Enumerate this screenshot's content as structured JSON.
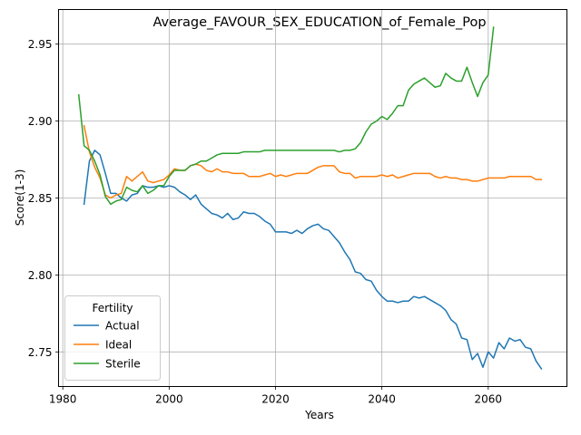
{
  "chart_data": {
    "type": "line",
    "title": "Average_FAVOUR_SEX_EDUCATION_of_Female_Pop",
    "xlabel": "Years",
    "ylabel": "Score(1-3)",
    "xlim": [
      1979.2,
      2074.8
    ],
    "ylim": [
      2.7275,
      2.9725
    ],
    "xticks": [
      1980,
      2000,
      2020,
      2040,
      2060
    ],
    "yticks": [
      2.75,
      2.8,
      2.85,
      2.9,
      2.95
    ],
    "ytick_labels": [
      "2.75",
      "2.80",
      "2.85",
      "2.90",
      "2.95"
    ],
    "grid": true,
    "legend": {
      "title": "Fertility",
      "placement": "lower-left"
    },
    "series": [
      {
        "name": "Actual",
        "color": "#1f77b4",
        "x": [
          1984,
          1985,
          1986,
          1987,
          1988,
          1989,
          1990,
          1991,
          1992,
          1993,
          1994,
          1995,
          1996,
          1997,
          1998,
          1999,
          2000,
          2001,
          2002,
          2003,
          2004,
          2005,
          2006,
          2007,
          2008,
          2009,
          2010,
          2011,
          2012,
          2013,
          2014,
          2015,
          2016,
          2017,
          2018,
          2019,
          2020,
          2021,
          2022,
          2023,
          2024,
          2025,
          2026,
          2027,
          2028,
          2029,
          2030,
          2031,
          2032,
          2033,
          2034,
          2035,
          2036,
          2037,
          2038,
          2039,
          2040,
          2041,
          2042,
          2043,
          2044,
          2045,
          2046,
          2047,
          2048,
          2049,
          2050,
          2051,
          2052,
          2053,
          2054,
          2055,
          2056,
          2057,
          2058,
          2059,
          2060,
          2061,
          2062,
          2063,
          2064,
          2065,
          2066,
          2067,
          2068,
          2069,
          2070
        ],
        "values": [
          2.846,
          2.874,
          2.881,
          2.878,
          2.866,
          2.853,
          2.853,
          2.85,
          2.848,
          2.852,
          2.853,
          2.858,
          2.857,
          2.857,
          2.858,
          2.857,
          2.858,
          2.857,
          2.854,
          2.852,
          2.849,
          2.852,
          2.846,
          2.843,
          2.84,
          2.839,
          2.837,
          2.84,
          2.836,
          2.837,
          2.841,
          2.84,
          2.84,
          2.838,
          2.835,
          2.833,
          2.828,
          2.828,
          2.828,
          2.827,
          2.829,
          2.827,
          2.83,
          2.832,
          2.833,
          2.83,
          2.829,
          2.825,
          2.821,
          2.815,
          2.81,
          2.802,
          2.801,
          2.797,
          2.796,
          2.79,
          2.786,
          2.783,
          2.783,
          2.782,
          2.783,
          2.783,
          2.786,
          2.785,
          2.786,
          2.784,
          2.782,
          2.78,
          2.777,
          2.771,
          2.768,
          2.759,
          2.758,
          2.745,
          2.749,
          2.74,
          2.75,
          2.746,
          2.756,
          2.752,
          2.759,
          2.757,
          2.758,
          2.753,
          2.752,
          2.744,
          2.739
        ]
      },
      {
        "name": "Ideal",
        "color": "#ff7f0e",
        "x": [
          1984,
          1985,
          1986,
          1987,
          1988,
          1989,
          1990,
          1991,
          1992,
          1993,
          1994,
          1995,
          1996,
          1997,
          1998,
          1999,
          2000,
          2001,
          2002,
          2003,
          2004,
          2005,
          2006,
          2007,
          2008,
          2009,
          2010,
          2011,
          2012,
          2013,
          2014,
          2015,
          2016,
          2017,
          2018,
          2019,
          2020,
          2021,
          2022,
          2023,
          2024,
          2025,
          2026,
          2027,
          2028,
          2029,
          2030,
          2031,
          2032,
          2033,
          2034,
          2035,
          2036,
          2037,
          2038,
          2039,
          2040,
          2041,
          2042,
          2043,
          2044,
          2045,
          2046,
          2047,
          2048,
          2049,
          2050,
          2051,
          2052,
          2053,
          2054,
          2055,
          2056,
          2057,
          2058,
          2059,
          2060,
          2061,
          2062,
          2063,
          2064,
          2065,
          2066,
          2067,
          2068,
          2069,
          2070
        ],
        "values": [
          2.897,
          2.88,
          2.87,
          2.863,
          2.852,
          2.85,
          2.852,
          2.853,
          2.864,
          2.861,
          2.864,
          2.867,
          2.861,
          2.86,
          2.861,
          2.862,
          2.865,
          2.869,
          2.868,
          2.868,
          2.871,
          2.872,
          2.871,
          2.868,
          2.867,
          2.869,
          2.867,
          2.867,
          2.866,
          2.866,
          2.866,
          2.864,
          2.864,
          2.864,
          2.865,
          2.866,
          2.864,
          2.865,
          2.864,
          2.865,
          2.866,
          2.866,
          2.866,
          2.868,
          2.87,
          2.871,
          2.871,
          2.871,
          2.867,
          2.866,
          2.866,
          2.863,
          2.864,
          2.864,
          2.864,
          2.864,
          2.865,
          2.864,
          2.865,
          2.863,
          2.864,
          2.865,
          2.866,
          2.866,
          2.866,
          2.866,
          2.864,
          2.863,
          2.864,
          2.863,
          2.863,
          2.862,
          2.862,
          2.861,
          2.861,
          2.862,
          2.863,
          2.863,
          2.863,
          2.863,
          2.864,
          2.864,
          2.864,
          2.864,
          2.864,
          2.862,
          2.862
        ]
      },
      {
        "name": "Sterile",
        "color": "#2ca02c",
        "x": [
          1983,
          1984,
          1985,
          1986,
          1987,
          1988,
          1989,
          1990,
          1991,
          1992,
          1993,
          1994,
          1995,
          1996,
          1997,
          1998,
          1999,
          2000,
          2001,
          2002,
          2003,
          2004,
          2005,
          2006,
          2007,
          2008,
          2009,
          2010,
          2011,
          2012,
          2013,
          2014,
          2015,
          2016,
          2017,
          2018,
          2019,
          2020,
          2021,
          2022,
          2023,
          2024,
          2025,
          2026,
          2027,
          2028,
          2029,
          2030,
          2031,
          2032,
          2033,
          2034,
          2035,
          2036,
          2037,
          2038,
          2039,
          2040,
          2041,
          2042,
          2043,
          2044,
          2045,
          2046,
          2047,
          2048,
          2049,
          2050,
          2051,
          2052,
          2053,
          2054,
          2055,
          2056,
          2057,
          2058,
          2059,
          2060,
          2061
        ],
        "values": [
          2.917,
          2.884,
          2.881,
          2.874,
          2.865,
          2.851,
          2.846,
          2.848,
          2.849,
          2.857,
          2.855,
          2.854,
          2.858,
          2.853,
          2.855,
          2.858,
          2.858,
          2.864,
          2.868,
          2.868,
          2.868,
          2.871,
          2.872,
          2.874,
          2.874,
          2.876,
          2.878,
          2.879,
          2.879,
          2.879,
          2.879,
          2.88,
          2.88,
          2.88,
          2.88,
          2.881,
          2.881,
          2.881,
          2.881,
          2.881,
          2.881,
          2.881,
          2.881,
          2.881,
          2.881,
          2.881,
          2.881,
          2.881,
          2.881,
          2.88,
          2.881,
          2.881,
          2.882,
          2.886,
          2.893,
          2.898,
          2.9,
          2.903,
          2.901,
          2.905,
          2.91,
          2.91,
          2.92,
          2.924,
          2.926,
          2.928,
          2.925,
          2.922,
          2.923,
          2.931,
          2.928,
          2.926,
          2.926,
          2.935,
          2.925,
          2.916,
          2.925,
          2.93,
          2.961
        ]
      }
    ]
  }
}
